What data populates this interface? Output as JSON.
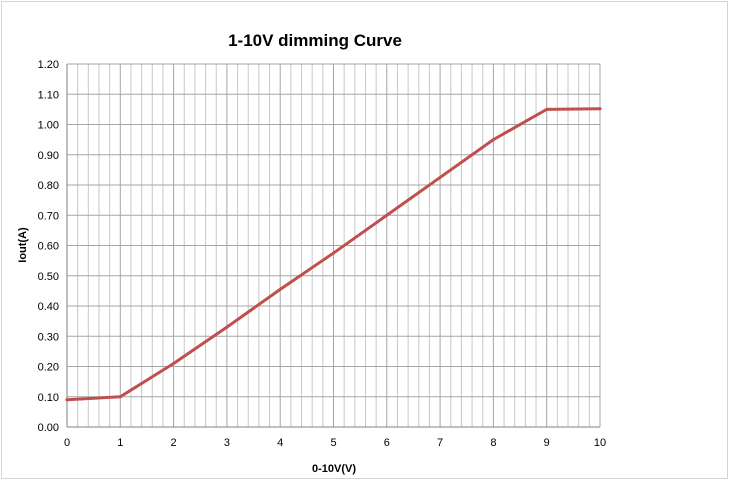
{
  "chart_data": {
    "type": "line",
    "title": "1-10V dimming Curve",
    "xlabel": "0-10V(V)",
    "ylabel": "Iout(A)",
    "xlim": [
      0,
      10
    ],
    "ylim": [
      0,
      1.2
    ],
    "x_ticks": [
      "0",
      "1",
      "2",
      "3",
      "4",
      "5",
      "6",
      "7",
      "8",
      "9",
      "10"
    ],
    "y_ticks": [
      "0.00",
      "0.10",
      "0.20",
      "0.30",
      "0.40",
      "0.50",
      "0.60",
      "0.70",
      "0.80",
      "0.90",
      "1.00",
      "1.10",
      "1.20"
    ],
    "grid": true,
    "minor_x_grid_step": 0.2,
    "series": [
      {
        "color": "#c0504d",
        "x": [
          0,
          1,
          2,
          3,
          4,
          5,
          6,
          7,
          8,
          9,
          10
        ],
        "y": [
          0.09,
          0.1,
          0.21,
          0.33,
          0.455,
          0.575,
          0.7,
          0.825,
          0.95,
          1.05,
          1.052
        ]
      }
    ]
  }
}
